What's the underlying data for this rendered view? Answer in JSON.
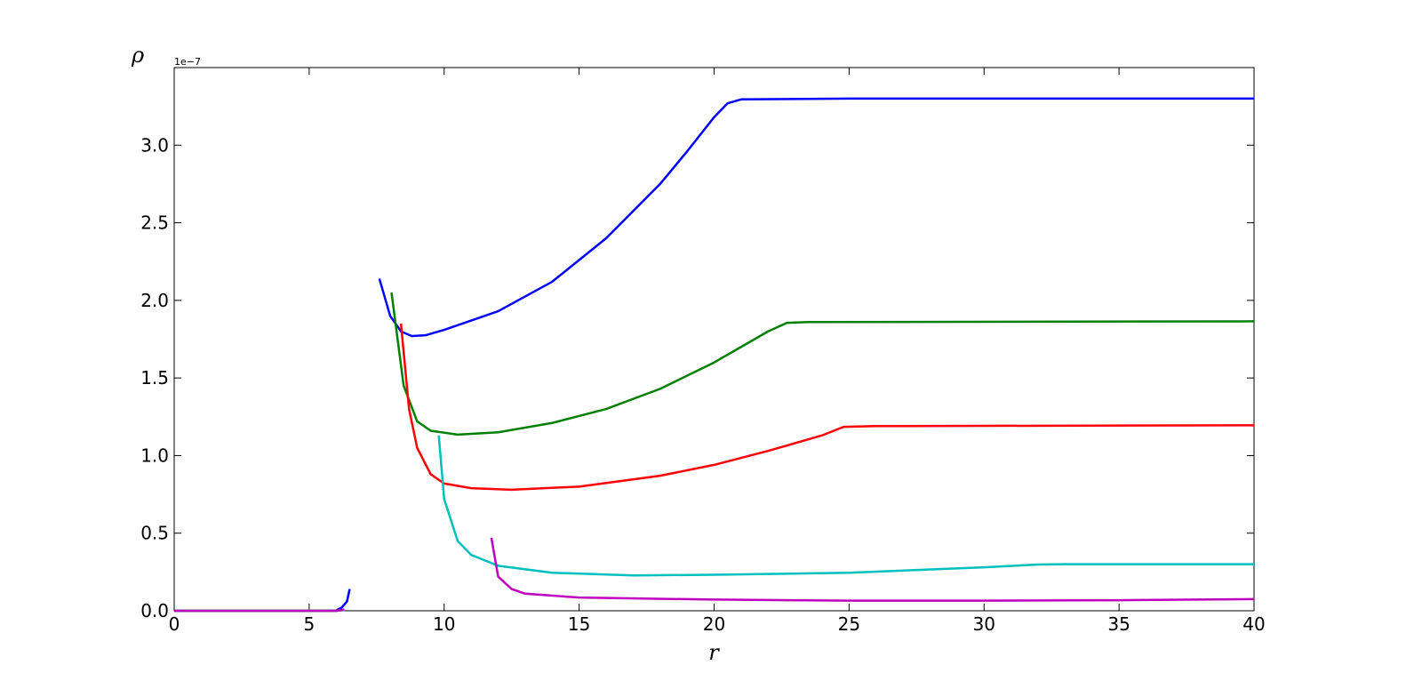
{
  "chart_data": {
    "type": "line",
    "xlabel": "r",
    "ylabel": "ρ",
    "y_offset_label": "1e−7",
    "xlim": [
      0,
      40
    ],
    "ylim": [
      0,
      3.5
    ],
    "xticks": [
      0,
      5,
      10,
      15,
      20,
      25,
      30,
      35,
      40
    ],
    "yticks": [
      {
        "value": 0,
        "label": "0.0"
      },
      0.5,
      {
        "value": 1,
        "label": "1.0"
      },
      1.5,
      {
        "value": 2,
        "label": "2.0"
      },
      2.5,
      {
        "value": 3,
        "label": "3.0"
      }
    ],
    "series": [
      {
        "color": "#0000ff",
        "x": [
          0,
          5,
          6,
          6.2,
          6.4,
          6.5,
          null,
          7.6,
          8,
          8.4,
          8.8,
          9.3,
          10,
          12,
          14,
          16,
          18,
          19,
          20,
          20.5,
          21,
          25,
          40
        ],
        "values": [
          0,
          0,
          0.002,
          0.02,
          0.06,
          0.14,
          null,
          2.14,
          1.9,
          1.8,
          1.77,
          1.775,
          1.81,
          1.93,
          2.12,
          2.4,
          2.75,
          2.96,
          3.18,
          3.27,
          3.295,
          3.3,
          3.3
        ]
      },
      {
        "color": "#008000",
        "x": [
          0,
          5,
          6,
          6.3,
          null,
          8.05,
          8.5,
          9,
          9.5,
          10.5,
          12,
          14,
          16,
          18,
          20,
          21,
          22,
          22.7,
          23.5,
          40
        ],
        "values": [
          0,
          0,
          0,
          0.005,
          null,
          2.05,
          1.45,
          1.22,
          1.16,
          1.135,
          1.15,
          1.21,
          1.3,
          1.43,
          1.6,
          1.7,
          1.8,
          1.855,
          1.86,
          1.865
        ]
      },
      {
        "color": "#ff0000",
        "x": [
          0,
          5,
          6,
          6.3,
          null,
          8.4,
          8.7,
          9,
          9.5,
          10,
          11,
          12.5,
          15,
          18,
          20,
          22,
          24,
          24.8,
          26,
          40
        ],
        "values": [
          0,
          0,
          0,
          0.005,
          null,
          1.85,
          1.3,
          1.05,
          0.88,
          0.82,
          0.79,
          0.78,
          0.8,
          0.87,
          0.94,
          1.03,
          1.13,
          1.185,
          1.19,
          1.195
        ]
      },
      {
        "color": "#00bfbf",
        "x": [
          0,
          5,
          6,
          6.3,
          null,
          9.8,
          10,
          10.5,
          11,
          12,
          14,
          17,
          20,
          25,
          30,
          32,
          33,
          40
        ],
        "values": [
          0,
          0,
          0,
          0.005,
          null,
          1.13,
          0.72,
          0.45,
          0.36,
          0.29,
          0.245,
          0.228,
          0.232,
          0.245,
          0.28,
          0.298,
          0.3,
          0.3
        ]
      },
      {
        "color": "#bf00bf",
        "x": [
          0,
          5,
          6,
          6.3,
          null,
          11.75,
          12,
          12.5,
          13,
          15,
          20,
          25,
          30,
          35,
          40
        ],
        "values": [
          0,
          0,
          0,
          0.008,
          null,
          0.47,
          0.22,
          0.14,
          0.11,
          0.085,
          0.072,
          0.065,
          0.065,
          0.068,
          0.075
        ]
      }
    ]
  }
}
